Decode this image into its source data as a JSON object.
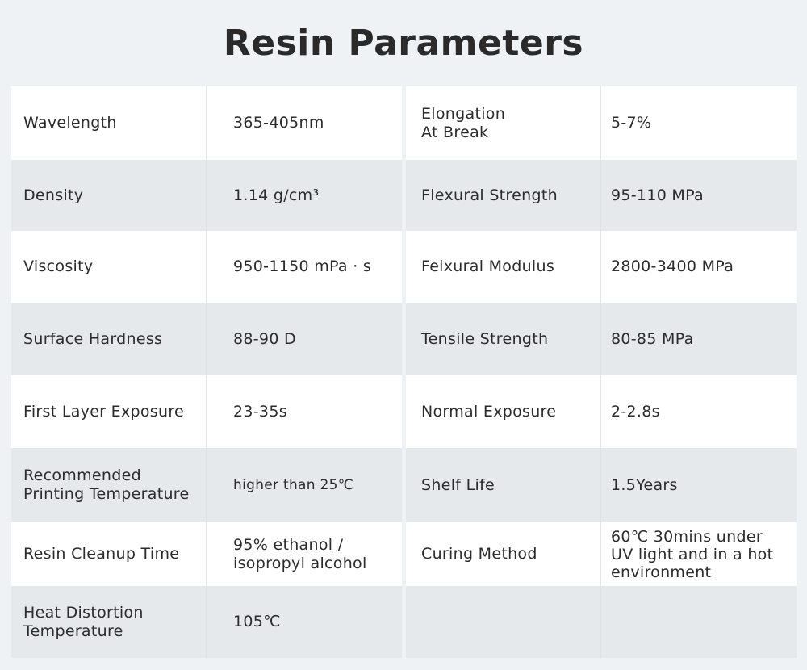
{
  "title": "Resin Parameters",
  "left_rows": [
    {
      "label": "Wavelength",
      "value": "365-405nm"
    },
    {
      "label": "Density",
      "value": "1.14 g/cm³"
    },
    {
      "label": "Viscosity",
      "value": "950-1150 mPa · s"
    },
    {
      "label": "Surface Hardness",
      "value": "88-90 D"
    },
    {
      "label": "First Layer Exposure",
      "value": "23-35s"
    },
    {
      "label": "Recommended\nPrinting  Temperature",
      "value": "higher than 25℃"
    },
    {
      "label": "Resin Cleanup Time",
      "value": "95% ethanol /\nisopropyl alcohol"
    },
    {
      "label": "Heat Distortion\nTemperature",
      "value": "105℃"
    }
  ],
  "right_rows": [
    {
      "label": "Elongation\nAt Break",
      "value": "5-7%"
    },
    {
      "label": "Flexural Strength",
      "value": "95-110 MPa"
    },
    {
      "label": "Felxural Modulus",
      "value": "2800-3400 MPa"
    },
    {
      "label": "Tensile Strength",
      "value": "80-85 MPa"
    },
    {
      "label": "Normal Exposure",
      "value": "2-2.8s"
    },
    {
      "label": "Shelf Life",
      "value": "1.5Years"
    },
    {
      "label": "Curing Method",
      "value": "60℃ 30mins under\nUV light and in a hot\nenvironment"
    },
    {
      "label": "",
      "value": ""
    }
  ]
}
